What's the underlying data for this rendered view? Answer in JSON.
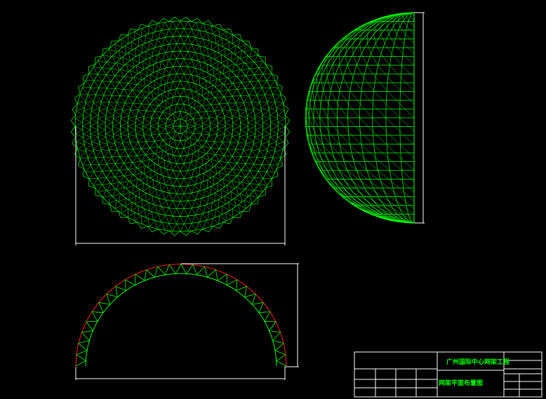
{
  "colors": {
    "background": "#000000",
    "structure": "#00ff00",
    "chord": "#ff2020",
    "lines": "#ffffff"
  },
  "title_block": {
    "project": "广州国际中心网架工程",
    "drawing": "网架平面布置图"
  }
}
